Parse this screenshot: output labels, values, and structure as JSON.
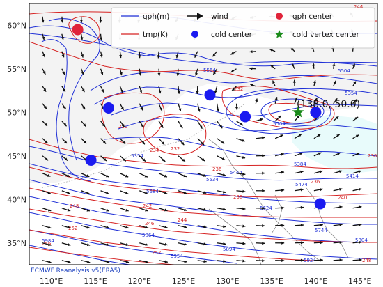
{
  "chart_data": {
    "type": "map",
    "lon_range": [
      107.5,
      147.0
    ],
    "lat_range": [
      32.5,
      62.5
    ],
    "x_ticks": [
      "110°E",
      "115°E",
      "120°E",
      "125°E",
      "130°E",
      "135°E",
      "140°E",
      "145°E"
    ],
    "y_ticks": [
      "35°N",
      "40°N",
      "45°N",
      "50°N",
      "55°N",
      "60°N"
    ],
    "legend": {
      "placement": "top-right",
      "entries": [
        {
          "label": "gph(m)",
          "kind": "line",
          "color": "#1f2fd6"
        },
        {
          "label": "tmp(K)",
          "kind": "line",
          "color": "#d62222"
        },
        {
          "label": "wind",
          "kind": "arrow",
          "color": "#111111"
        },
        {
          "label": "cold center",
          "kind": "dot",
          "color": "#1a1af0"
        },
        {
          "label": "gph center",
          "kind": "dot",
          "color": "#e0243a"
        },
        {
          "label": "cold vertex center",
          "kind": "star",
          "color": "#1a8a1a"
        }
      ]
    },
    "gph_center": [
      {
        "lon": 113.0,
        "lat": 59.5
      }
    ],
    "cold_centers": [
      {
        "lon": 116.5,
        "lat": 50.5
      },
      {
        "lon": 128.0,
        "lat": 52.0
      },
      {
        "lon": 132.0,
        "lat": 49.5
      },
      {
        "lon": 140.0,
        "lat": 50.0
      },
      {
        "lon": 114.5,
        "lat": 44.5
      },
      {
        "lon": 140.5,
        "lat": 39.5
      }
    ],
    "cold_vertex_center": [
      {
        "lon": 138.0,
        "lat": 50.0
      }
    ],
    "annotation": "(138.0, 50.0)",
    "gph_labels": [
      "5564",
      "5504",
      "5354",
      "5384",
      "5504",
      "5444",
      "5474",
      "5414",
      "5534",
      "5684",
      "5624",
      "5744",
      "5804",
      "5864",
      "5894",
      "5924",
      "5954",
      "5984",
      "5354"
    ],
    "tmp_labels": [
      "244",
      "232",
      "230",
      "232",
      "234",
      "236",
      "238",
      "242",
      "246",
      "252",
      "230",
      "236",
      "240",
      "244",
      "248",
      "252",
      "256",
      "248"
    ],
    "source": "ECMWF Reanalysis v5(ERA5)"
  }
}
